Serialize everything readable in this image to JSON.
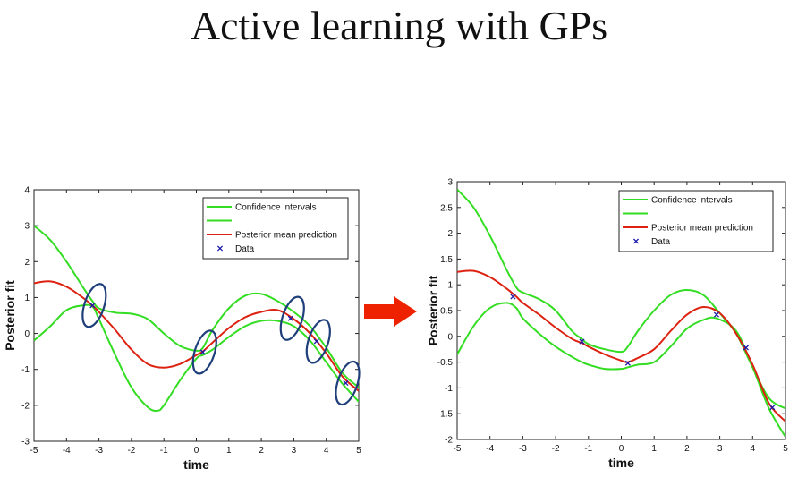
{
  "slide": {
    "title": "Active learning with GPs"
  },
  "colors": {
    "confidence": "#33dd22",
    "mean": "#dd2211",
    "data": "#1a1aaa",
    "ellipse": "#1f3f7a",
    "arrow": "#ee2200"
  },
  "arrow_icon": "right-arrow-icon",
  "chart_data": [
    {
      "type": "line",
      "xlabel": "time",
      "ylabel": "Posterior fit",
      "xlim": [
        -5,
        5
      ],
      "ylim": [
        -3,
        4
      ],
      "xticks": [
        -5,
        -4,
        -3,
        -2,
        -1,
        0,
        1,
        2,
        3,
        4,
        5
      ],
      "yticks": [
        -3,
        -2,
        -1,
        0,
        1,
        2,
        3,
        4
      ],
      "legend_position": "top-right",
      "legend": [
        "Confidence intervals",
        "",
        "Posterior mean prediction",
        "Data"
      ],
      "series": [
        {
          "name": "Confidence intervals",
          "kind": "upper",
          "x": [
            -5,
            -4.5,
            -4,
            -3.5,
            -3.2,
            -3,
            -2.5,
            -2,
            -1.5,
            -1,
            -0.5,
            0,
            0.2,
            0.5,
            1,
            1.5,
            2,
            2.5,
            3,
            3.5,
            4,
            4.5,
            5
          ],
          "y": [
            3.0,
            2.6,
            2.0,
            1.3,
            0.9,
            0.7,
            0.58,
            0.55,
            0.4,
            0.0,
            -0.35,
            -0.48,
            -0.4,
            0.1,
            0.7,
            1.05,
            1.1,
            0.9,
            0.6,
            0.2,
            -0.4,
            -1.1,
            -1.5
          ]
        },
        {
          "name": "",
          "kind": "lower",
          "x": [
            -5,
            -4.5,
            -4,
            -3.5,
            -3.2,
            -3,
            -2.5,
            -2,
            -1.5,
            -1.2,
            -1,
            -0.5,
            0,
            0.2,
            0.5,
            1,
            1.5,
            2,
            2.5,
            3,
            3.5,
            4,
            4.5,
            5
          ],
          "y": [
            -0.2,
            0.2,
            0.65,
            0.78,
            0.75,
            0.4,
            -0.6,
            -1.5,
            -2.05,
            -2.15,
            -2.0,
            -1.3,
            -0.7,
            -0.6,
            -0.45,
            -0.1,
            0.2,
            0.35,
            0.35,
            0.2,
            -0.2,
            -0.8,
            -1.4,
            -1.9
          ]
        },
        {
          "name": "Posterior mean prediction",
          "kind": "mean",
          "x": [
            -5,
            -4.5,
            -4,
            -3.5,
            -3.2,
            -3,
            -2.5,
            -2,
            -1.5,
            -1,
            -0.5,
            0,
            0.2,
            0.5,
            1,
            1.5,
            2,
            2.5,
            3,
            3.5,
            4,
            4.5,
            5
          ],
          "y": [
            1.4,
            1.45,
            1.3,
            1.0,
            0.78,
            0.6,
            0.1,
            -0.45,
            -0.85,
            -0.95,
            -0.85,
            -0.6,
            -0.5,
            -0.25,
            0.15,
            0.45,
            0.6,
            0.65,
            0.4,
            0.0,
            -0.55,
            -1.2,
            -1.6
          ]
        },
        {
          "name": "Data",
          "kind": "points",
          "x": [
            -3.2,
            0.2,
            2.9,
            3.7,
            4.6
          ],
          "y": [
            0.78,
            -0.52,
            0.42,
            -0.22,
            -1.38
          ]
        }
      ],
      "annotations": [
        {
          "kind": "ellipse",
          "x": -3.2,
          "y": 0.78
        },
        {
          "kind": "ellipse",
          "x": 0.2,
          "y": -0.52
        },
        {
          "kind": "ellipse",
          "x": 2.9,
          "y": 0.42
        },
        {
          "kind": "ellipse",
          "x": 3.7,
          "y": -0.22
        },
        {
          "kind": "ellipse",
          "x": 4.6,
          "y": -1.38
        }
      ]
    },
    {
      "type": "line",
      "xlabel": "time",
      "ylabel": "Posterior fit",
      "xlim": [
        -5,
        5
      ],
      "ylim": [
        -2,
        3
      ],
      "xticks": [
        -5,
        -4,
        -3,
        -2,
        -1,
        0,
        1,
        2,
        3,
        4,
        5
      ],
      "yticks": [
        -2,
        -1.5,
        -1,
        -0.5,
        0,
        0.5,
        1,
        1.5,
        2,
        2.5,
        3
      ],
      "legend_position": "top-right",
      "legend": [
        "Confidence intervals",
        "",
        "Posterior mean prediction",
        "Data"
      ],
      "series": [
        {
          "name": "Confidence intervals",
          "kind": "upper",
          "x": [
            -5,
            -4.5,
            -4,
            -3.5,
            -3.2,
            -3,
            -2.5,
            -2,
            -1.5,
            -1.2,
            -1,
            -0.5,
            0,
            0.2,
            0.5,
            1,
            1.5,
            2,
            2.5,
            3,
            3.5,
            4,
            4.5,
            5
          ],
          "y": [
            2.85,
            2.5,
            1.95,
            1.3,
            0.95,
            0.85,
            0.72,
            0.5,
            0.1,
            -0.05,
            -0.15,
            -0.25,
            -0.3,
            -0.2,
            0.1,
            0.5,
            0.8,
            0.9,
            0.8,
            0.45,
            0.05,
            -0.6,
            -1.2,
            -1.4
          ]
        },
        {
          "name": "",
          "kind": "lower",
          "x": [
            -5,
            -4.5,
            -4,
            -3.5,
            -3.2,
            -3,
            -2.5,
            -2,
            -1.5,
            -1.2,
            -1,
            -0.5,
            0,
            0.2,
            0.5,
            1,
            1.5,
            2,
            2.5,
            2.9,
            3.5,
            4,
            4.5,
            5
          ],
          "y": [
            -0.35,
            0.2,
            0.55,
            0.65,
            0.55,
            0.35,
            0.05,
            -0.2,
            -0.4,
            -0.5,
            -0.55,
            -0.63,
            -0.63,
            -0.6,
            -0.55,
            -0.5,
            -0.2,
            0.15,
            0.32,
            0.35,
            0.1,
            -0.6,
            -1.4,
            -1.95
          ]
        },
        {
          "name": "Posterior mean prediction",
          "kind": "mean",
          "x": [
            -5,
            -4.5,
            -4,
            -3.5,
            -3.2,
            -3,
            -2.5,
            -2,
            -1.5,
            -1.2,
            -1,
            -0.5,
            0,
            0.2,
            0.5,
            1,
            1.5,
            2,
            2.5,
            3,
            3.5,
            4,
            4.5,
            5
          ],
          "y": [
            1.25,
            1.27,
            1.15,
            0.93,
            0.77,
            0.65,
            0.42,
            0.17,
            -0.05,
            -0.13,
            -0.2,
            -0.35,
            -0.47,
            -0.5,
            -0.42,
            -0.25,
            0.1,
            0.42,
            0.57,
            0.45,
            0.05,
            -0.55,
            -1.3,
            -1.65
          ]
        },
        {
          "name": "Data",
          "kind": "points",
          "x": [
            -3.3,
            -1.2,
            0.2,
            2.9,
            3.8,
            4.6
          ],
          "y": [
            0.77,
            -0.1,
            -0.52,
            0.42,
            -0.22,
            -1.38
          ]
        }
      ],
      "annotations": []
    }
  ]
}
